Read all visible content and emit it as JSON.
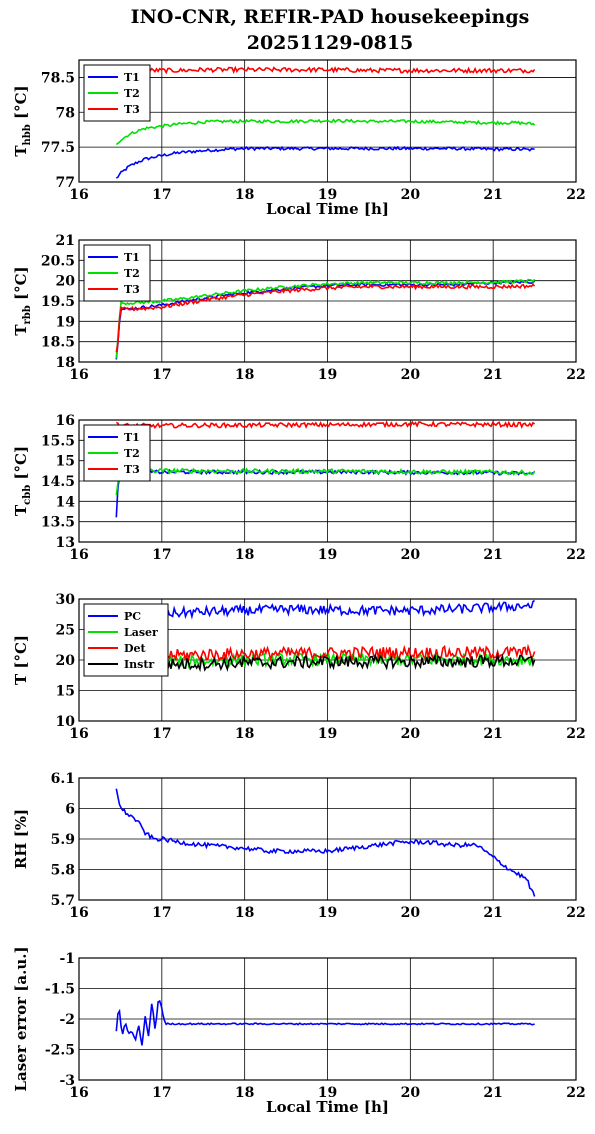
{
  "title_line1": "INO-CNR, REFIR-PAD housekeepings",
  "title_line2": "20251129-0815",
  "chart_data": [
    {
      "type": "line",
      "ylabel_main": "T",
      "ylabel_sub": "hbb",
      "ylabel_unit": "[°C]",
      "xlabel": "Local Time [h]",
      "xlim": [
        16,
        22
      ],
      "ylim": [
        77,
        78.75
      ],
      "xticks": [
        "16",
        "17",
        "18",
        "19",
        "20",
        "21",
        "22"
      ],
      "yticks": [
        {
          "v": 77,
          "label": "77"
        },
        {
          "v": 77.5,
          "label": "77.5"
        },
        {
          "v": 78,
          "label": "78"
        },
        {
          "v": 78.5,
          "label": "78.5"
        }
      ],
      "grid": true,
      "legend": "top-left",
      "x": [
        16.45,
        16.5,
        16.6,
        16.7,
        16.8,
        17.0,
        17.2,
        17.5,
        17.8,
        18.0,
        18.5,
        19.0,
        19.5,
        20.0,
        20.5,
        21.0,
        21.3,
        21.5
      ],
      "series": [
        {
          "name": "T1",
          "color": "#0000ff",
          "noise": 0.012,
          "values": [
            77.05,
            77.12,
            77.22,
            77.28,
            77.33,
            77.38,
            77.42,
            77.45,
            77.47,
            77.48,
            77.48,
            77.48,
            77.48,
            77.48,
            77.48,
            77.47,
            77.47,
            77.46
          ]
        },
        {
          "name": "T2",
          "color": "#00e000",
          "noise": 0.012,
          "values": [
            77.55,
            77.6,
            77.68,
            77.73,
            77.77,
            77.8,
            77.83,
            77.86,
            77.87,
            77.87,
            77.87,
            77.88,
            77.87,
            77.87,
            77.86,
            77.85,
            77.85,
            77.83
          ]
        },
        {
          "name": "T3",
          "color": "#ff0000",
          "noise": 0.018,
          "values": [
            78.62,
            78.6,
            78.6,
            78.6,
            78.6,
            78.6,
            78.6,
            78.61,
            78.61,
            78.61,
            78.61,
            78.61,
            78.6,
            78.6,
            78.6,
            78.6,
            78.6,
            78.6
          ]
        }
      ]
    },
    {
      "type": "line",
      "ylabel_main": "T",
      "ylabel_sub": "rbb",
      "ylabel_unit": "[°C]",
      "xlabel": "",
      "xlim": [
        16,
        22
      ],
      "ylim": [
        18,
        21
      ],
      "xticks": [
        "16",
        "17",
        "18",
        "19",
        "20",
        "21",
        "22"
      ],
      "yticks": [
        {
          "v": 18,
          "label": "18"
        },
        {
          "v": 18.5,
          "label": "18.5"
        },
        {
          "v": 19,
          "label": "19"
        },
        {
          "v": 19.5,
          "label": "19.5"
        },
        {
          "v": 20,
          "label": "20"
        },
        {
          "v": 20.5,
          "label": "20.5"
        },
        {
          "v": 21,
          "label": "21"
        }
      ],
      "grid": true,
      "legend": "top-left",
      "x": [
        16.45,
        16.47,
        16.5,
        16.6,
        16.8,
        17.0,
        17.3,
        17.6,
        18.0,
        18.5,
        19.0,
        19.5,
        20.0,
        20.5,
        21.0,
        21.5
      ],
      "series": [
        {
          "name": "T1",
          "color": "#0000ff",
          "noise": 0.012,
          "values": [
            18.1,
            18.5,
            19.3,
            19.3,
            19.35,
            19.4,
            19.5,
            19.6,
            19.7,
            19.8,
            19.88,
            19.9,
            19.9,
            19.9,
            19.95,
            19.97
          ]
        },
        {
          "name": "T2",
          "color": "#00e000",
          "noise": 0.012,
          "values": [
            18.1,
            18.6,
            19.45,
            19.45,
            19.47,
            19.5,
            19.57,
            19.65,
            19.75,
            19.85,
            19.92,
            19.95,
            19.95,
            19.95,
            19.96,
            20.0
          ]
        },
        {
          "name": "T3",
          "color": "#ff0000",
          "noise": 0.015,
          "values": [
            18.25,
            18.5,
            19.3,
            19.3,
            19.32,
            19.35,
            19.45,
            19.55,
            19.65,
            19.75,
            19.82,
            19.85,
            19.85,
            19.85,
            19.85,
            19.87
          ]
        }
      ]
    },
    {
      "type": "line",
      "ylabel_main": "T",
      "ylabel_sub": "cbb",
      "ylabel_unit": "[°C]",
      "xlabel": "",
      "xlim": [
        16,
        22
      ],
      "ylim": [
        13,
        16
      ],
      "xticks": [
        "16",
        "17",
        "18",
        "19",
        "20",
        "21",
        "22"
      ],
      "yticks": [
        {
          "v": 13,
          "label": "13"
        },
        {
          "v": 13.5,
          "label": "13.5"
        },
        {
          "v": 14,
          "label": "14"
        },
        {
          "v": 14.5,
          "label": "14.5"
        },
        {
          "v": 15,
          "label": "15"
        },
        {
          "v": 15.5,
          "label": "15.5"
        },
        {
          "v": 16,
          "label": "16"
        }
      ],
      "grid": true,
      "legend": "top-left",
      "x": [
        16.45,
        16.47,
        16.5,
        16.6,
        16.8,
        17.0,
        17.5,
        18.0,
        18.5,
        19.0,
        19.5,
        20.0,
        20.5,
        21.0,
        21.5
      ],
      "series": [
        {
          "name": "T1",
          "color": "#0000ff",
          "noise": 0.015,
          "values": [
            13.6,
            14.4,
            14.72,
            14.72,
            14.72,
            14.72,
            14.72,
            14.72,
            14.72,
            14.72,
            14.72,
            14.71,
            14.71,
            14.7,
            14.68
          ]
        },
        {
          "name": "T2",
          "color": "#00e000",
          "noise": 0.018,
          "values": [
            14.2,
            14.5,
            14.75,
            14.75,
            14.75,
            14.75,
            14.75,
            14.74,
            14.74,
            14.74,
            14.74,
            14.73,
            14.72,
            14.72,
            14.7
          ]
        },
        {
          "name": "T3",
          "color": "#ff0000",
          "noise": 0.018,
          "values": [
            15.95,
            15.9,
            15.87,
            15.86,
            15.86,
            15.86,
            15.87,
            15.87,
            15.88,
            15.88,
            15.89,
            15.9,
            15.89,
            15.89,
            15.88
          ]
        }
      ]
    },
    {
      "type": "line",
      "ylabel_main": "T [°C]",
      "ylabel_sub": "",
      "ylabel_unit": "",
      "xlabel": "",
      "xlim": [
        16,
        22
      ],
      "ylim": [
        10,
        30
      ],
      "xticks": [
        "16",
        "17",
        "18",
        "19",
        "20",
        "21",
        "22"
      ],
      "yticks": [
        {
          "v": 10,
          "label": "10"
        },
        {
          "v": 15,
          "label": "15"
        },
        {
          "v": 20,
          "label": "20"
        },
        {
          "v": 25,
          "label": "25"
        },
        {
          "v": 30,
          "label": "30"
        }
      ],
      "grid": true,
      "legend": "top-left",
      "x": [
        16.45,
        16.7,
        17.0,
        17.5,
        18.0,
        18.5,
        19.0,
        19.5,
        20.0,
        20.5,
        21.0,
        21.5
      ],
      "series": [
        {
          "name": "PC",
          "color": "#0000ff",
          "noise": 0.04,
          "values": [
            27.4,
            27.5,
            27.6,
            27.9,
            28.1,
            28.3,
            28.2,
            28.1,
            28.1,
            28.3,
            28.6,
            29.0
          ]
        },
        {
          "name": "Laser",
          "color": "#00e000",
          "noise": 0.05,
          "values": [
            19.6,
            19.7,
            19.8,
            19.9,
            20.0,
            20.1,
            20.1,
            20.1,
            20.1,
            20.1,
            20.1,
            20.1
          ]
        },
        {
          "name": "Det",
          "color": "#ff0000",
          "noise": 0.05,
          "values": [
            20.3,
            20.5,
            20.7,
            20.9,
            21.0,
            21.1,
            21.1,
            21.2,
            21.2,
            21.2,
            21.2,
            21.3
          ]
        },
        {
          "name": "Instr",
          "color": "#000000",
          "noise": 0.05,
          "values": [
            18.9,
            19.1,
            19.3,
            19.4,
            19.5,
            19.6,
            19.7,
            19.7,
            19.7,
            19.7,
            19.8,
            19.8
          ]
        }
      ]
    },
    {
      "type": "line",
      "ylabel_main": "RH [%]",
      "ylabel_sub": "",
      "ylabel_unit": "",
      "xlabel": "",
      "xlim": [
        16,
        22
      ],
      "ylim": [
        5.7,
        6.1
      ],
      "xticks": [
        "16",
        "17",
        "18",
        "19",
        "20",
        "21",
        "22"
      ],
      "yticks": [
        {
          "v": 5.7,
          "label": "5.7"
        },
        {
          "v": 5.8,
          "label": "5.8"
        },
        {
          "v": 5.9,
          "label": "5.9"
        },
        {
          "v": 6,
          "label": "6"
        },
        {
          "v": 6.1,
          "label": "6.1"
        }
      ],
      "grid": true,
      "legend": "",
      "x": [
        16.45,
        16.5,
        16.6,
        16.7,
        16.8,
        16.9,
        17.0,
        17.2,
        17.5,
        18.0,
        18.3,
        18.6,
        19.0,
        19.3,
        19.6,
        19.9,
        20.2,
        20.5,
        20.8,
        21.0,
        21.2,
        21.4,
        21.5
      ],
      "series": [
        {
          "name": "",
          "color": "#0000ff",
          "noise": 0.018,
          "values": [
            6.07,
            6.0,
            5.98,
            5.96,
            5.92,
            5.9,
            5.9,
            5.89,
            5.88,
            5.87,
            5.86,
            5.86,
            5.86,
            5.87,
            5.88,
            5.89,
            5.89,
            5.88,
            5.88,
            5.84,
            5.8,
            5.77,
            5.71
          ]
        }
      ]
    },
    {
      "type": "line",
      "ylabel_main": "Laser error [a.u.]",
      "ylabel_sub": "",
      "ylabel_unit": "",
      "xlabel": "Local Time [h]",
      "xlim": [
        16,
        22
      ],
      "ylim": [
        -3,
        -1
      ],
      "xticks": [
        "16",
        "17",
        "18",
        "19",
        "20",
        "21",
        "22"
      ],
      "yticks": [
        {
          "v": -3,
          "label": "-3"
        },
        {
          "v": -2.5,
          "label": "-2.5"
        },
        {
          "v": -2,
          "label": "-2"
        },
        {
          "v": -1.5,
          "label": "-1.5"
        },
        {
          "v": -1,
          "label": "-1"
        }
      ],
      "grid": true,
      "legend": "",
      "x": [
        16.45,
        16.48,
        16.52,
        16.56,
        16.6,
        16.64,
        16.68,
        16.72,
        16.76,
        16.8,
        16.84,
        16.88,
        16.92,
        16.96,
        17.0,
        17.02,
        17.05,
        17.5,
        18.0,
        19.0,
        20.0,
        21.0,
        21.5
      ],
      "series": [
        {
          "name": "",
          "color": "#0000ff",
          "noise": 0.006,
          "values": [
            -2.2,
            -1.75,
            -2.3,
            -2.05,
            -2.25,
            -2.2,
            -2.35,
            -2.1,
            -2.45,
            -1.95,
            -2.3,
            -1.7,
            -2.2,
            -1.65,
            -1.8,
            -2.0,
            -2.08,
            -2.08,
            -2.08,
            -2.08,
            -2.08,
            -2.08,
            -2.08
          ]
        }
      ]
    }
  ]
}
